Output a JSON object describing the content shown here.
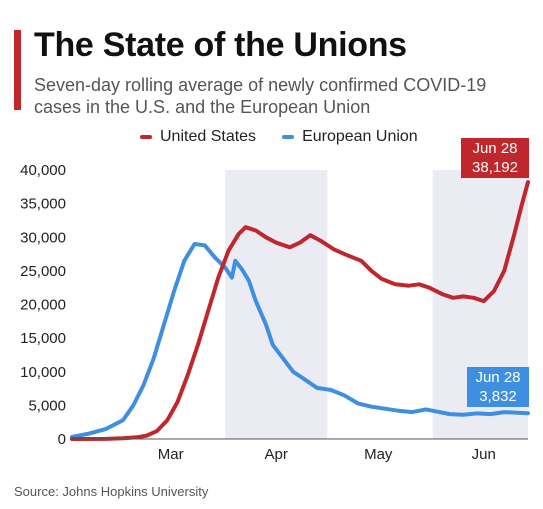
{
  "header": {
    "title": "The State of the Unions",
    "subtitle": "Seven-day rolling average of newly confirmed COVID-19 cases in the U.S. and the European Union"
  },
  "footer": {
    "source": "Source: Johns Hopkins University"
  },
  "colors": {
    "us": "#c0272d",
    "eu": "#3f8fe0",
    "accent": "#c0272d",
    "shade": "#ebebf3"
  },
  "chart_data": {
    "type": "line",
    "title": "The State of the Unions",
    "subtitle": "Seven-day rolling average of newly confirmed COVID-19 cases in the U.S. and the European Union",
    "xlabel": "",
    "ylabel": "",
    "x_range": [
      "2020-02-15",
      "2020-06-28"
    ],
    "ylim": [
      0,
      40000
    ],
    "yticks": [
      0,
      5000,
      10000,
      15000,
      20000,
      25000,
      30000,
      35000,
      40000
    ],
    "ytick_labels": [
      "0",
      "5,000",
      "10,000",
      "15,000",
      "20,000",
      "25,000",
      "30,000",
      "35,000",
      "40,000"
    ],
    "xtick_labels": [
      {
        "date": "2020-03-15",
        "label": "Mar"
      },
      {
        "date": "2020-04-15",
        "label": "Apr"
      },
      {
        "date": "2020-05-15",
        "label": "May"
      },
      {
        "date": "2020-06-15",
        "label": "Jun"
      }
    ],
    "shaded_months": [
      [
        "2020-03-01",
        "2020-04-01"
      ],
      [
        "2020-05-01",
        "2020-06-01"
      ]
    ],
    "alternate_bands": [
      [
        "2020-03-31",
        "2020-04-30"
      ],
      [
        "2020-05-31",
        "2020-06-28"
      ]
    ],
    "grid": false,
    "legend": "top-center",
    "series": [
      {
        "name": "United States",
        "color": "#c0272d",
        "points": [
          [
            "2020-02-15",
            0
          ],
          [
            "2020-02-25",
            10
          ],
          [
            "2020-03-01",
            100
          ],
          [
            "2020-03-05",
            250
          ],
          [
            "2020-03-08",
            500
          ],
          [
            "2020-03-11",
            1200
          ],
          [
            "2020-03-14",
            2800
          ],
          [
            "2020-03-17",
            5500
          ],
          [
            "2020-03-20",
            9500
          ],
          [
            "2020-03-23",
            14000
          ],
          [
            "2020-03-26",
            19000
          ],
          [
            "2020-03-29",
            24000
          ],
          [
            "2020-04-01",
            28000
          ],
          [
            "2020-04-04",
            30500
          ],
          [
            "2020-04-06",
            31500
          ],
          [
            "2020-04-09",
            31000
          ],
          [
            "2020-04-12",
            30000
          ],
          [
            "2020-04-15",
            29200
          ],
          [
            "2020-04-19",
            28500
          ],
          [
            "2020-04-22",
            29200
          ],
          [
            "2020-04-25",
            30300
          ],
          [
            "2020-04-28",
            29500
          ],
          [
            "2020-05-02",
            28200
          ],
          [
            "2020-05-06",
            27300
          ],
          [
            "2020-05-10",
            26500
          ],
          [
            "2020-05-13",
            25000
          ],
          [
            "2020-05-16",
            23800
          ],
          [
            "2020-05-20",
            23000
          ],
          [
            "2020-05-24",
            22800
          ],
          [
            "2020-05-27",
            23000
          ],
          [
            "2020-05-30",
            22500
          ],
          [
            "2020-06-03",
            21500
          ],
          [
            "2020-06-06",
            21000
          ],
          [
            "2020-06-09",
            21200
          ],
          [
            "2020-06-12",
            21000
          ],
          [
            "2020-06-15",
            20500
          ],
          [
            "2020-06-18",
            22000
          ],
          [
            "2020-06-21",
            25000
          ],
          [
            "2020-06-24",
            30500
          ],
          [
            "2020-06-26",
            34500
          ],
          [
            "2020-06-28",
            38192
          ]
        ]
      },
      {
        "name": "European Union",
        "color": "#3f8fe0",
        "points": [
          [
            "2020-02-15",
            300
          ],
          [
            "2020-02-20",
            800
          ],
          [
            "2020-02-25",
            1500
          ],
          [
            "2020-03-01",
            2800
          ],
          [
            "2020-03-04",
            5000
          ],
          [
            "2020-03-07",
            8000
          ],
          [
            "2020-03-10",
            12000
          ],
          [
            "2020-03-13",
            17000
          ],
          [
            "2020-03-16",
            22000
          ],
          [
            "2020-03-19",
            26500
          ],
          [
            "2020-03-22",
            29000
          ],
          [
            "2020-03-25",
            28800
          ],
          [
            "2020-03-28",
            27000
          ],
          [
            "2020-03-31",
            25500
          ],
          [
            "2020-04-02",
            24000
          ],
          [
            "2020-04-03",
            26500
          ],
          [
            "2020-04-05",
            25200
          ],
          [
            "2020-04-07",
            23500
          ],
          [
            "2020-04-09",
            20500
          ],
          [
            "2020-04-12",
            17000
          ],
          [
            "2020-04-14",
            14000
          ],
          [
            "2020-04-17",
            12000
          ],
          [
            "2020-04-20",
            10000
          ],
          [
            "2020-04-23",
            9000
          ],
          [
            "2020-04-27",
            7600
          ],
          [
            "2020-05-01",
            7300
          ],
          [
            "2020-05-05",
            6500
          ],
          [
            "2020-05-09",
            5300
          ],
          [
            "2020-05-13",
            4800
          ],
          [
            "2020-05-17",
            4500
          ],
          [
            "2020-05-21",
            4200
          ],
          [
            "2020-05-25",
            4000
          ],
          [
            "2020-05-29",
            4400
          ],
          [
            "2020-06-02",
            4000
          ],
          [
            "2020-06-05",
            3700
          ],
          [
            "2020-06-09",
            3600
          ],
          [
            "2020-06-13",
            3800
          ],
          [
            "2020-06-17",
            3700
          ],
          [
            "2020-06-21",
            4000
          ],
          [
            "2020-06-25",
            3900
          ],
          [
            "2020-06-28",
            3832
          ]
        ]
      }
    ],
    "callouts": [
      {
        "series": "United States",
        "date": "Jun 28",
        "value": "38,192"
      },
      {
        "series": "European Union",
        "date": "Jun 28",
        "value": "3,832"
      }
    ]
  }
}
